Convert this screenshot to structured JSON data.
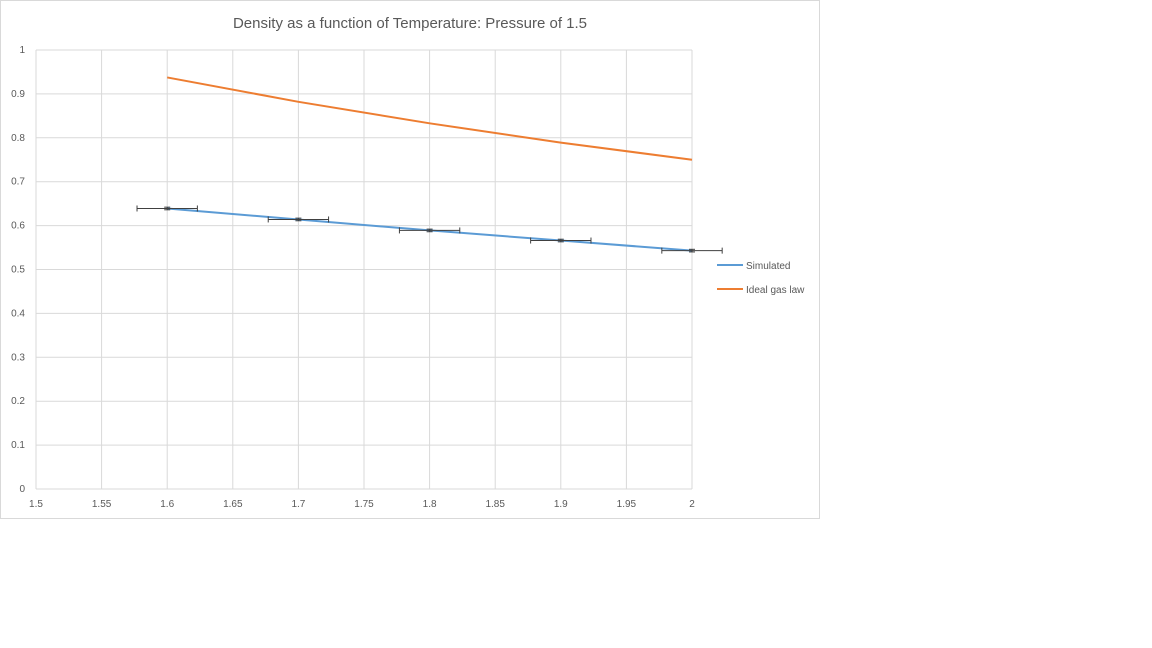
{
  "chart_data": {
    "type": "line",
    "title": "Density as a function of Temperature: Pressure of 1.5",
    "xlabel": "",
    "ylabel": "",
    "xlim": [
      1.5,
      2
    ],
    "ylim": [
      0,
      1
    ],
    "xticks": [
      "1.5",
      "1.55",
      "1.6",
      "1.65",
      "1.7",
      "1.75",
      "1.8",
      "1.85",
      "1.9",
      "1.95",
      "2"
    ],
    "yticks": [
      "0",
      "0.1",
      "0.2",
      "0.3",
      "0.4",
      "0.5",
      "0.6",
      "0.7",
      "0.8",
      "0.9",
      "1"
    ],
    "grid": true,
    "legend_position": "right",
    "series": [
      {
        "name": "Simulated",
        "color": "#5b9bd5",
        "x": [
          1.6,
          1.7,
          1.8,
          1.9,
          2.0
        ],
        "y": [
          0.639,
          0.614,
          0.589,
          0.566,
          0.543
        ],
        "x_error": [
          0.023,
          0.023,
          0.023,
          0.023,
          0.023
        ],
        "y_error": [
          0.003,
          0.003,
          0.003,
          0.003,
          0.003
        ]
      },
      {
        "name": "Ideal gas law",
        "color": "#ed7d31",
        "x": [
          1.6,
          1.7,
          1.8,
          1.9,
          2.0
        ],
        "y": [
          0.9375,
          0.882,
          0.833,
          0.789,
          0.75
        ]
      }
    ]
  }
}
